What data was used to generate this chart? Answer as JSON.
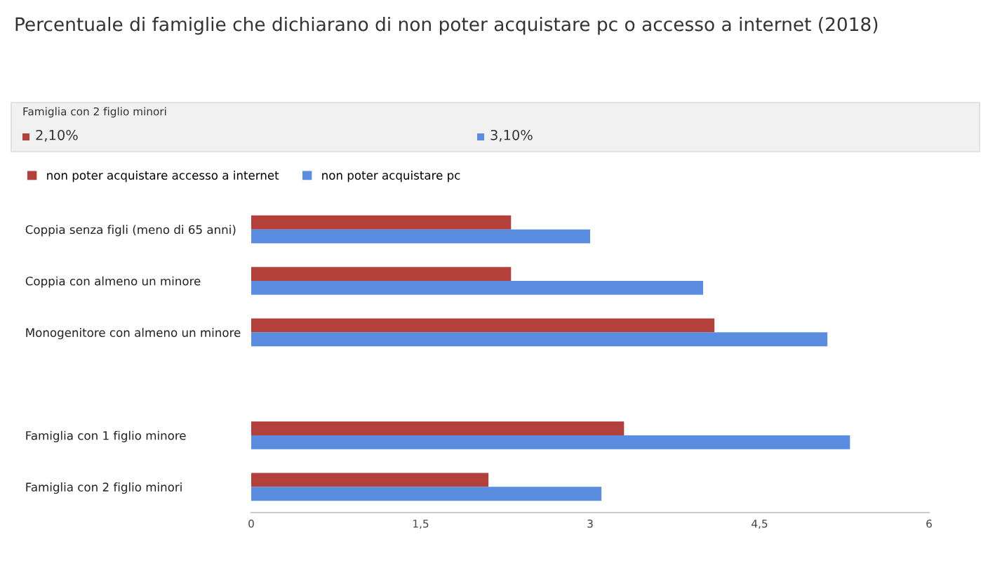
{
  "chart_data": {
    "type": "bar",
    "orientation": "horizontal",
    "title": "Percentuale di famiglie che dichiarano di non poter acquistare pc o accesso a internet (2018)",
    "annotations": [
      "Famiglia con 2 figlio minori",
      "2,10%",
      "3,10%"
    ],
    "categories": [
      "Coppia senza figli (meno di 65 anni)",
      "Coppia con almeno un minore",
      "Monogenitore con almeno un minore",
      null,
      "Famiglia con 1 figlio minore",
      "Famiglia con 2 figlio minori"
    ],
    "series": [
      {
        "name": "non poter acquistare accesso a internet",
        "color": "#b3403a",
        "values": [
          2.3,
          2.3,
          4.1,
          null,
          3.3,
          2.1
        ]
      },
      {
        "name": "non poter acquistare pc",
        "color": "#5a8de0",
        "values": [
          3.0,
          4.0,
          5.1,
          null,
          5.3,
          3.1
        ]
      }
    ],
    "xlim": [
      0,
      6
    ],
    "xticks": [
      0,
      {
        "value": 1.5,
        "label": "1,5"
      },
      3,
      {
        "value": 4.5,
        "label": "4,5"
      },
      6
    ],
    "grid": false,
    "legend": "top left"
  }
}
